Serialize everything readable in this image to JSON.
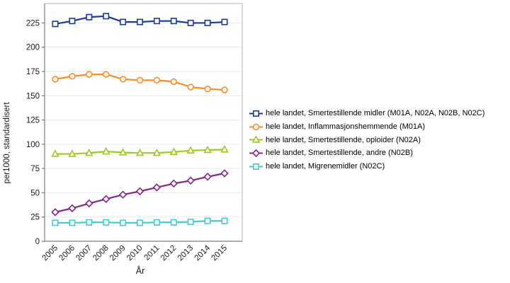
{
  "chart_data": {
    "type": "line",
    "title": "",
    "xlabel": "År",
    "ylabel": "per1000, standardisert",
    "categories": [
      "2005",
      "2006",
      "2007",
      "2008",
      "2009",
      "2010",
      "2011",
      "2012",
      "2013",
      "2014",
      "2015"
    ],
    "yticks": [
      0,
      25,
      50,
      75,
      100,
      125,
      150,
      175,
      200,
      225
    ],
    "ylim": [
      0,
      245
    ],
    "grid": true,
    "legend_position": "right",
    "series": [
      {
        "name": "hele landet, Smertestillende midler (M01A, N02A, N02B, N02C)",
        "marker": "square",
        "color": "#1B38A0",
        "values": [
          224,
          227,
          231,
          232,
          226,
          226,
          227,
          227,
          225,
          225,
          226
        ]
      },
      {
        "name": "hele landet, Inflammasjonshemmende (M01A)",
        "marker": "circle",
        "color": "#FF8A26",
        "values": [
          167,
          170,
          172,
          172,
          167,
          166,
          166,
          164.5,
          159,
          157,
          156
        ]
      },
      {
        "name": "hele landet, Smertestillende, opioider (N02A)",
        "marker": "triangle",
        "color": "#9DCB1F",
        "values": [
          90,
          90,
          91,
          92.5,
          91.5,
          91,
          91,
          92,
          93.5,
          94,
          94.5
        ]
      },
      {
        "name": "hele landet, Smertestillende, andre (N02B)",
        "marker": "diamond",
        "color": "#83278A",
        "values": [
          30,
          34,
          39,
          43.5,
          48,
          51.5,
          55.5,
          59.5,
          62.5,
          66.5,
          70
        ]
      },
      {
        "name": "hele landet, Migrenemidler (N02C)",
        "marker": "square",
        "color": "#3ECED3",
        "values": [
          19,
          19,
          19.5,
          19.5,
          19,
          19,
          19.5,
          19.5,
          20,
          21,
          21
        ]
      }
    ],
    "colors": {
      "gridline": "#E9E9E9",
      "plot_border": "#B6B6B6",
      "axis": "#7d7d7d",
      "tick_label": "#1a1a1a"
    }
  }
}
